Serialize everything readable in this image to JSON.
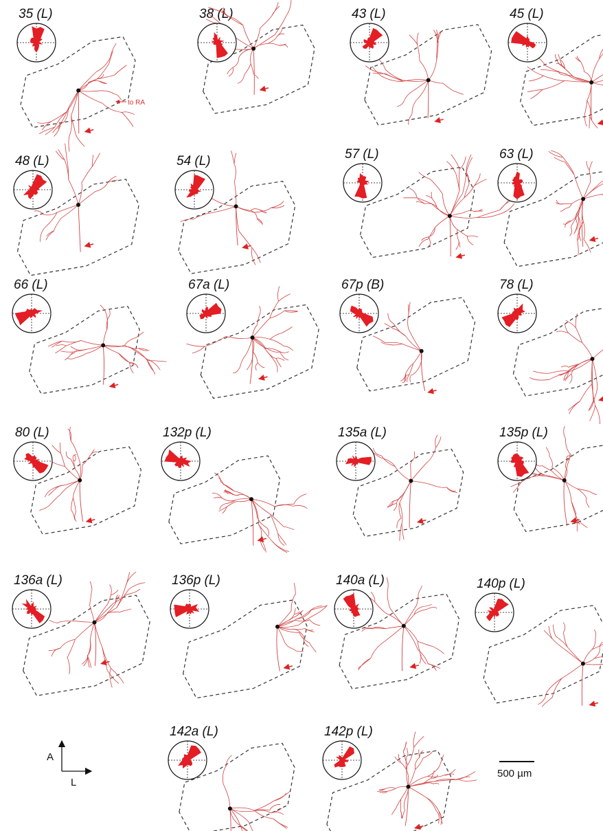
{
  "panels": [
    "35 (L)",
    "38 (L)",
    "43 (L)",
    "45 (L)",
    "48 (L)",
    "54 (L)",
    "57 (L)",
    "63 (L)",
    "66 (L)",
    "67a (L)",
    "67p (B)",
    "78 (L)",
    "80 (L)",
    "132p (L)",
    "135a (L)",
    "135p (L)",
    "136a (L)",
    "136p (L)",
    "140a (L)",
    "140p (L)",
    "142a (L)",
    "142p (L)"
  ],
  "annotations": {
    "to_ra": "to RA"
  },
  "axes": {
    "anterior": "A",
    "lateral": "L"
  },
  "scale_bar": "500 µm"
}
